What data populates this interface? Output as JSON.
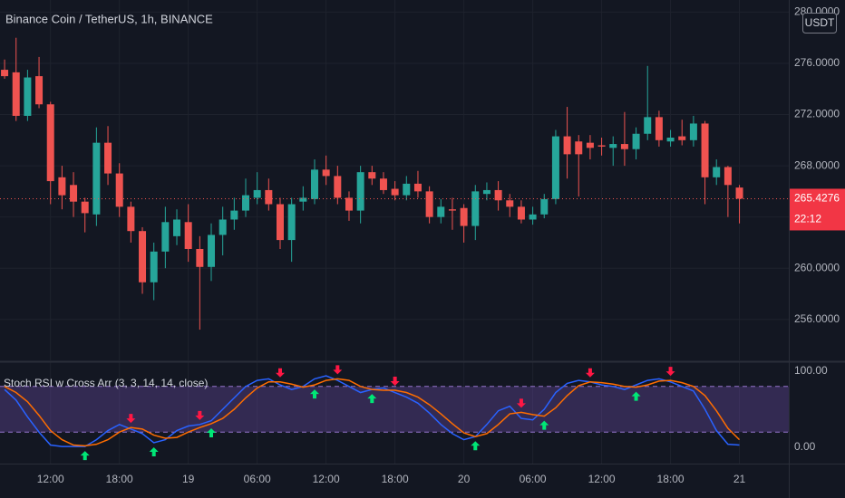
{
  "chart_data": [
    {
      "type": "candlestick",
      "title": "Binance Coin / TetherUS, 1h, BINANCE",
      "currency": "USDT",
      "countdown": "22:12",
      "x": [
        8,
        9,
        10,
        11,
        12,
        13,
        14,
        15,
        16,
        17,
        18,
        19,
        20,
        21,
        22,
        23,
        24,
        25,
        26,
        27,
        28,
        29,
        30,
        31,
        32,
        33,
        34,
        35,
        36,
        37,
        38,
        39,
        40,
        41,
        42,
        43,
        44,
        45,
        46,
        47,
        48,
        49,
        50,
        51,
        52,
        53,
        54,
        55,
        56,
        57,
        58,
        59,
        60,
        61,
        62,
        63,
        64,
        65,
        66,
        67,
        68,
        69,
        70,
        71,
        72
      ],
      "open": [
        275.5,
        275.3,
        271.9,
        275.0,
        272.8,
        267.1,
        266.5,
        265.2,
        264.2,
        269.8,
        267.4,
        264.8,
        262.9,
        258.9,
        261.3,
        262.5,
        263.6,
        261.5,
        260.1,
        262.6,
        263.8,
        264.5,
        265.5,
        266.1,
        265.0,
        262.2,
        265.2,
        265.4,
        267.7,
        267.2,
        265.5,
        264.5,
        267.5,
        267.0,
        266.2,
        265.7,
        266.6,
        266.0,
        264.0,
        264.6,
        264.7,
        263.3,
        265.8,
        266.1,
        265.3,
        264.8,
        263.8,
        264.2,
        265.4,
        270.3,
        269.9,
        269.8,
        269.6,
        269.4,
        269.7,
        269.3,
        270.5,
        271.8,
        269.9,
        270.3,
        270.0,
        271.3,
        267.1,
        267.9,
        266.3
      ],
      "high": [
        276.3,
        278.0,
        275.5,
        276.5,
        273.0,
        268.0,
        267.5,
        265.5,
        271.0,
        271.1,
        268.2,
        265.2,
        263.2,
        262.0,
        264.8,
        264.6,
        265.0,
        262.5,
        263.5,
        264.8,
        265.5,
        267.0,
        267.5,
        267.0,
        265.5,
        265.5,
        266.4,
        268.5,
        268.8,
        268.0,
        266.0,
        268.0,
        268.0,
        267.5,
        266.8,
        267.2,
        267.6,
        266.4,
        265.4,
        265.5,
        265.0,
        266.5,
        266.7,
        266.8,
        265.8,
        265.3,
        264.8,
        265.8,
        270.8,
        272.6,
        270.4,
        270.4,
        270.2,
        270.3,
        272.2,
        271.0,
        275.8,
        272.3,
        270.8,
        271.6,
        271.9,
        271.5,
        268.5,
        268.0,
        266.5
      ],
      "low": [
        274.8,
        271.5,
        271.5,
        272.5,
        265.0,
        264.6,
        264.0,
        262.8,
        263.3,
        266.5,
        264.0,
        262.0,
        258.0,
        257.5,
        260.0,
        261.8,
        260.5,
        255.2,
        259.0,
        261.0,
        263.0,
        264.0,
        265.0,
        264.5,
        261.5,
        260.5,
        264.5,
        265.0,
        266.5,
        265.0,
        263.7,
        263.5,
        266.5,
        265.8,
        265.3,
        265.3,
        265.5,
        263.5,
        263.5,
        263.0,
        262.0,
        262.2,
        265.3,
        264.5,
        264.0,
        263.5,
        263.4,
        263.9,
        265.0,
        267.0,
        265.6,
        268.5,
        268.8,
        268.0,
        268.0,
        268.5,
        270.0,
        269.5,
        269.5,
        269.6,
        269.5,
        265.0,
        266.5,
        264.0,
        263.5
      ],
      "close": [
        275.0,
        271.9,
        274.9,
        272.8,
        266.8,
        265.7,
        265.2,
        264.3,
        269.8,
        267.4,
        264.8,
        262.9,
        258.9,
        261.3,
        263.6,
        263.8,
        261.5,
        260.1,
        262.6,
        263.8,
        264.5,
        265.7,
        266.1,
        265.0,
        262.2,
        265.0,
        265.5,
        267.7,
        267.2,
        265.5,
        264.5,
        267.5,
        267.0,
        266.1,
        265.7,
        266.6,
        266.0,
        264.0,
        264.8,
        264.5,
        263.3,
        266.0,
        266.1,
        265.3,
        264.8,
        263.8,
        264.2,
        265.4,
        270.3,
        268.9,
        268.9,
        269.4,
        269.5,
        269.7,
        269.3,
        270.5,
        271.8,
        270.0,
        270.2,
        270.0,
        271.3,
        267.1,
        267.9,
        266.5,
        265.4276
      ],
      "up_color": "#26a69a",
      "down_color": "#ef5350",
      "xlim": [
        7.6,
        76.3
      ],
      "xticks": [
        {
          "value": 12,
          "label": "12:00"
        },
        {
          "value": 18,
          "label": "18:00"
        },
        {
          "value": 24,
          "label": "19"
        },
        {
          "value": 30,
          "label": "06:00"
        },
        {
          "value": 36,
          "label": "12:00"
        },
        {
          "value": 42,
          "label": "18:00"
        },
        {
          "value": 48,
          "label": "20"
        },
        {
          "value": 54,
          "label": "06:00"
        },
        {
          "value": 60,
          "label": "12:00"
        },
        {
          "value": 66,
          "label": "18:00"
        },
        {
          "value": 72,
          "label": "21"
        }
      ],
      "ylim": [
        252.8,
        280.95
      ],
      "yticks": [
        {
          "value": 256,
          "label": "256.0000"
        },
        {
          "value": 260,
          "label": "260.0000"
        },
        {
          "value": 264,
          "label": "264.0000"
        },
        {
          "value": 268,
          "label": "268.0000"
        },
        {
          "value": 272,
          "label": "272.0000"
        },
        {
          "value": 276,
          "label": "276.0000"
        },
        {
          "value": 280,
          "label": "280.0000"
        }
      ],
      "grid": true
    },
    {
      "type": "line",
      "title": "Stoch RSI w Cross Arr (3, 3, 14, 14, close)",
      "series": [
        {
          "color": "#2962ff",
          "values": [
            76,
            62,
            40,
            20,
            3,
            1,
            1,
            1,
            10,
            22,
            30,
            24,
            18,
            6,
            10,
            22,
            28,
            30,
            35,
            50,
            65,
            80,
            88,
            90,
            82,
            76,
            80,
            90,
            94,
            88,
            80,
            72,
            76,
            78,
            72,
            66,
            58,
            45,
            30,
            18,
            10,
            14,
            30,
            48,
            54,
            38,
            36,
            50,
            72,
            84,
            88,
            86,
            82,
            80,
            76,
            82,
            88,
            90,
            86,
            80,
            74,
            50,
            22,
            4,
            3
          ]
        },
        {
          "color": "#ff6d00",
          "values": [
            80,
            72,
            60,
            42,
            22,
            10,
            3,
            2,
            4,
            10,
            20,
            26,
            24,
            16,
            12,
            13,
            20,
            26,
            31,
            38,
            50,
            65,
            78,
            86,
            86,
            83,
            79,
            82,
            88,
            90,
            88,
            80,
            76,
            75,
            75,
            72,
            66,
            56,
            44,
            31,
            19,
            14,
            18,
            30,
            44,
            46,
            43,
            41,
            52,
            68,
            81,
            86,
            85,
            83,
            80,
            79,
            82,
            87,
            88,
            85,
            80,
            68,
            48,
            25,
            10
          ]
        }
      ],
      "cross_up_x": [
        15,
        21,
        26,
        35,
        40,
        49,
        55,
        63
      ],
      "cross_down_x": [
        19,
        25,
        32,
        37,
        42,
        53,
        59,
        66
      ],
      "bands": [
        20,
        80
      ],
      "ylim": [
        -21.4,
        111.9
      ],
      "yticks": [
        {
          "value": 0,
          "label": "0.00"
        },
        {
          "value": 100,
          "label": "100.00"
        }
      ]
    }
  ]
}
